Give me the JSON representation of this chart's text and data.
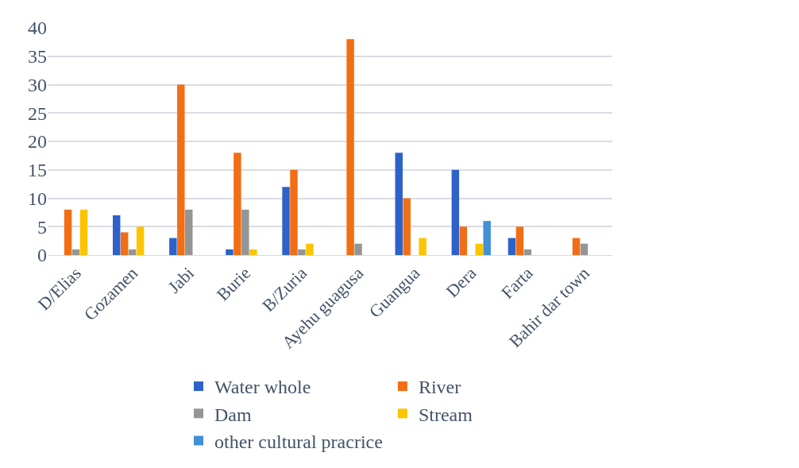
{
  "chart_data": {
    "type": "bar",
    "categories": [
      "D/Elias",
      "Gozamen",
      "Jabi",
      "Burie",
      "B/Zuria",
      "Ayehu guagusa",
      "Guangua",
      "Dera",
      "Farta",
      "Bahir dar town"
    ],
    "series": [
      {
        "name": "Water whole",
        "color": "#2e62c9",
        "values": [
          0,
          7,
          3,
          1,
          12,
          0,
          18,
          15,
          3,
          0
        ]
      },
      {
        "name": "River",
        "color": "#f26e14",
        "values": [
          8,
          4,
          30,
          18,
          15,
          38,
          10,
          5,
          5,
          3
        ]
      },
      {
        "name": "Dam",
        "color": "#959595",
        "values": [
          1,
          1,
          8,
          8,
          1,
          2,
          0,
          0,
          1,
          2
        ]
      },
      {
        "name": "Stream",
        "color": "#fcc500",
        "values": [
          8,
          5,
          0,
          1,
          2,
          0,
          3,
          2,
          0,
          0
        ]
      },
      {
        "name": "other cultural pracrice",
        "color": "#4190d8",
        "values": [
          0,
          0,
          0,
          0,
          0,
          0,
          0,
          6,
          0,
          0
        ]
      }
    ],
    "ylim": [
      0,
      40
    ],
    "yticks": [
      0,
      5,
      10,
      15,
      20,
      25,
      30,
      35,
      40
    ],
    "grid": "y",
    "legend": "bottom"
  }
}
